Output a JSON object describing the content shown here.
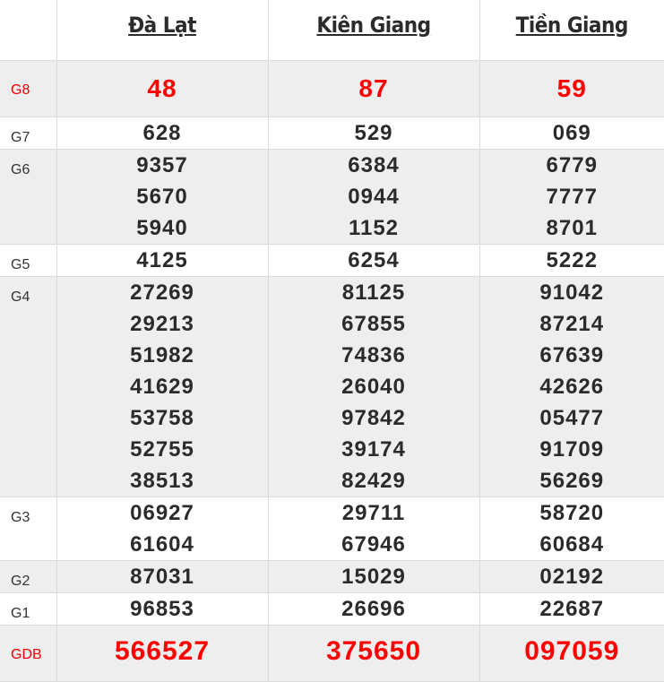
{
  "header": {
    "provinces": [
      "Đà Lạt",
      "Kiên Giang",
      "Tiền Giang"
    ]
  },
  "colors": {
    "highlight": "#ff0000",
    "text": "#2b2b2b",
    "row_alt": "#eeeeee"
  },
  "prizes": [
    {
      "label": "G8",
      "highlight": true,
      "results": [
        [
          "48"
        ],
        [
          "87"
        ],
        [
          "59"
        ]
      ]
    },
    {
      "label": "G7",
      "results": [
        [
          "628"
        ],
        [
          "529"
        ],
        [
          "069"
        ]
      ]
    },
    {
      "label": "G6",
      "results": [
        [
          "9357",
          "5670",
          "5940"
        ],
        [
          "6384",
          "0944",
          "1152"
        ],
        [
          "6779",
          "7777",
          "8701"
        ]
      ]
    },
    {
      "label": "G5",
      "results": [
        [
          "4125"
        ],
        [
          "6254"
        ],
        [
          "5222"
        ]
      ]
    },
    {
      "label": "G4",
      "results": [
        [
          "27269",
          "29213",
          "51982",
          "41629",
          "53758",
          "52755",
          "38513"
        ],
        [
          "81125",
          "67855",
          "74836",
          "26040",
          "97842",
          "39174",
          "82429"
        ],
        [
          "91042",
          "87214",
          "67639",
          "42626",
          "05477",
          "91709",
          "56269"
        ]
      ]
    },
    {
      "label": "G3",
      "results": [
        [
          "06927",
          "61604"
        ],
        [
          "29711",
          "67946"
        ],
        [
          "58720",
          "60684"
        ]
      ]
    },
    {
      "label": "G2",
      "results": [
        [
          "87031"
        ],
        [
          "15029"
        ],
        [
          "02192"
        ]
      ]
    },
    {
      "label": "G1",
      "results": [
        [
          "96853"
        ],
        [
          "26696"
        ],
        [
          "22687"
        ]
      ]
    },
    {
      "label": "GDB",
      "highlight": true,
      "results": [
        [
          "566527"
        ],
        [
          "375650"
        ],
        [
          "097059"
        ]
      ]
    }
  ]
}
